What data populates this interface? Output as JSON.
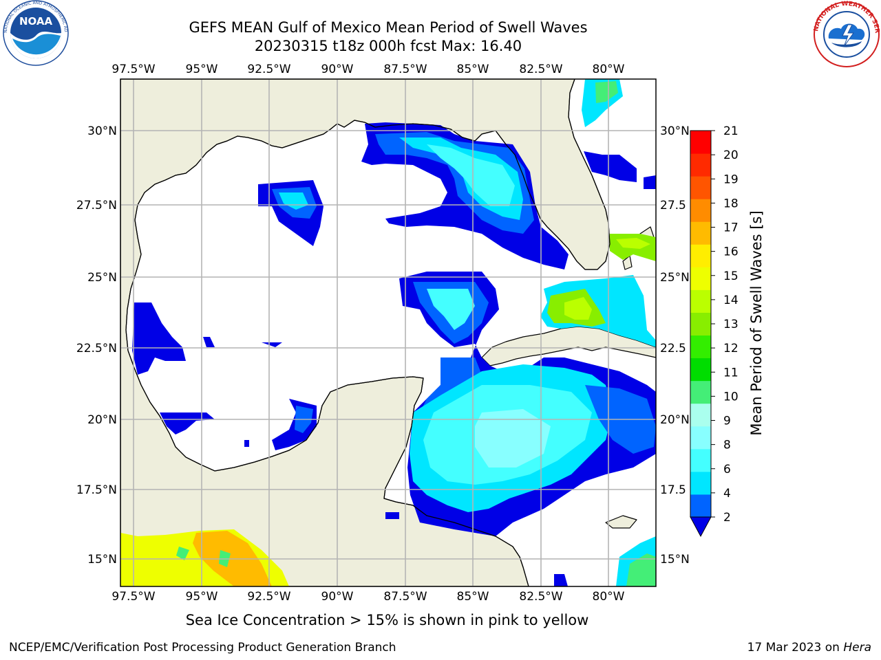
{
  "header": {
    "title": "GEFS MEAN Gulf of Mexico Mean Period of Swell Waves",
    "subtitle": "20230315 t18z 000h fcst   Max: 16.40"
  },
  "logos": {
    "left": {
      "name": "noaa-logo",
      "text": "NOAA",
      "ring_text": "NATIONAL OCEANIC AND ATMOSPHERIC ADMINISTRATION • U.S. DEPARTMENT OF COMMERCE"
    },
    "right": {
      "name": "nws-logo",
      "ring_text": "NATIONAL WEATHER SERVICE"
    }
  },
  "map": {
    "lon_labels": [
      "97.5°W",
      "95°W",
      "92.5°W",
      "90°W",
      "87.5°W",
      "85°W",
      "82.5°W",
      "80°W"
    ],
    "lat_labels_left": [
      "30°N",
      "27.5°N",
      "25°N",
      "22.5°N",
      "20°N",
      "17.5°N",
      "15°N"
    ],
    "lat_labels_right": [
      "30°N",
      "27.5",
      "25°N",
      "22.5",
      "20°N",
      "17.5",
      "15°N"
    ],
    "colors": {
      "land": "#eeeedc",
      "ocean": "#ffffff",
      "grid": "#b4b4b4",
      "coast": "#000000"
    }
  },
  "colorbar": {
    "label": "Mean Period of Swell Waves [s]",
    "ticks": [
      "2",
      "4",
      "6",
      "8",
      "9",
      "10",
      "11",
      "12",
      "13",
      "14",
      "15",
      "16",
      "17",
      "18",
      "19",
      "20",
      "21"
    ],
    "colors": [
      "#0000e6",
      "#0064ff",
      "#00e6ff",
      "#44ffff",
      "#88ffff",
      "#aaffee",
      "#44ee77",
      "#00dd00",
      "#33ee00",
      "#88ee00",
      "#bbff00",
      "#eeff00",
      "#ffee00",
      "#ffbb00",
      "#ff8c00",
      "#ff5500",
      "#ff2a00",
      "#ff0000"
    ]
  },
  "note": "Sea Ice Concentration > 15% is shown in pink to yellow",
  "footer": {
    "left": "NCEP/EMC/Verification Post Processing Product Generation Branch",
    "right_prefix": "17 Mar 2023 on ",
    "right_italic": "Hera"
  }
}
